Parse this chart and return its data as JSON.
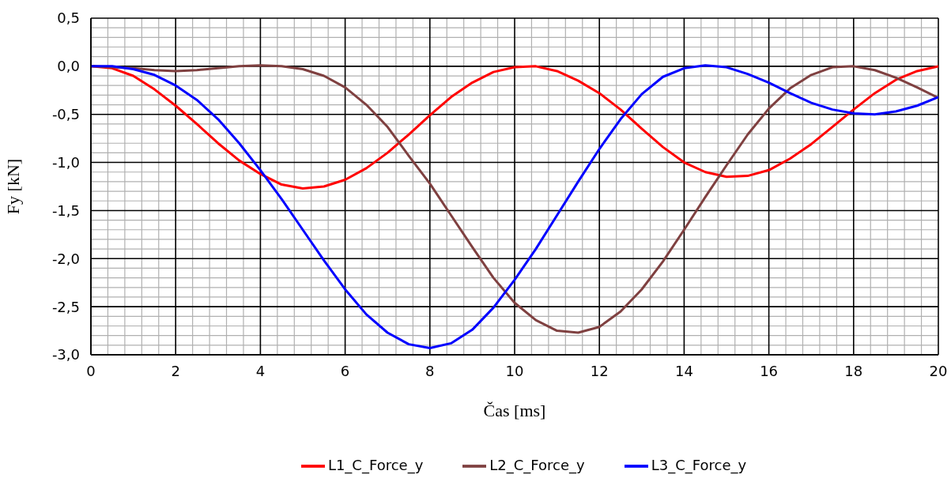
{
  "chart_data": {
    "type": "line",
    "xlabel": "Čas [ms]",
    "ylabel": "Fy [kN]",
    "x": [
      0,
      0.5,
      1,
      1.5,
      2,
      2.5,
      3,
      3.5,
      4,
      4.5,
      5,
      5.5,
      6,
      6.5,
      7,
      7.5,
      8,
      8.5,
      9,
      9.5,
      10,
      10.5,
      11,
      11.5,
      12,
      12.5,
      13,
      13.5,
      14,
      14.5,
      15,
      15.5,
      16,
      16.5,
      17,
      17.5,
      18,
      18.5,
      19,
      19.5,
      20
    ],
    "series": [
      {
        "name": "L1_C_Force_y",
        "color": "#ff0000",
        "values": [
          0,
          -0.02,
          -0.1,
          -0.24,
          -0.41,
          -0.6,
          -0.8,
          -0.98,
          -1.12,
          -1.23,
          -1.27,
          -1.25,
          -1.18,
          -1.06,
          -0.9,
          -0.71,
          -0.51,
          -0.32,
          -0.17,
          -0.06,
          -0.01,
          0,
          -0.05,
          -0.15,
          -0.28,
          -0.45,
          -0.65,
          -0.84,
          -1.0,
          -1.1,
          -1.15,
          -1.14,
          -1.08,
          -0.96,
          -0.81,
          -0.63,
          -0.45,
          -0.28,
          -0.14,
          -0.05,
          0
        ]
      },
      {
        "name": "L2_C_Force_y",
        "color": "#7f4040",
        "values": [
          0,
          -0.01,
          -0.02,
          -0.04,
          -0.05,
          -0.04,
          -0.02,
          0,
          0.01,
          0,
          -0.03,
          -0.1,
          -0.22,
          -0.4,
          -0.63,
          -0.93,
          -1.22,
          -1.55,
          -1.88,
          -2.2,
          -2.46,
          -2.64,
          -2.75,
          -2.77,
          -2.71,
          -2.55,
          -2.32,
          -2.03,
          -1.7,
          -1.36,
          -1.03,
          -0.71,
          -0.44,
          -0.23,
          -0.09,
          -0.01,
          0,
          -0.04,
          -0.12,
          -0.22,
          -0.33
        ]
      },
      {
        "name": "L3_C_Force_y",
        "color": "#0000ff",
        "values": [
          0,
          0,
          -0.03,
          -0.09,
          -0.2,
          -0.35,
          -0.55,
          -0.8,
          -1.08,
          -1.38,
          -1.7,
          -2.02,
          -2.32,
          -2.58,
          -2.77,
          -2.89,
          -2.93,
          -2.88,
          -2.74,
          -2.51,
          -2.22,
          -1.9,
          -1.55,
          -1.2,
          -0.86,
          -0.55,
          -0.29,
          -0.11,
          -0.02,
          0.01,
          -0.01,
          -0.08,
          -0.17,
          -0.28,
          -0.38,
          -0.45,
          -0.49,
          -0.5,
          -0.47,
          -0.41,
          -0.32
        ]
      }
    ],
    "xlim": [
      0,
      20
    ],
    "xticks": [
      0,
      2,
      4,
      6,
      8,
      10,
      12,
      14,
      16,
      18,
      20
    ],
    "ylim": [
      -3,
      0.5
    ],
    "yticks": [
      {
        "value": -3,
        "label": "-3,0"
      },
      {
        "value": -2.5,
        "label": "-2,5"
      },
      {
        "value": -2,
        "label": "-2,0"
      },
      {
        "value": -1.5,
        "label": "-1,5"
      },
      {
        "value": -1,
        "label": "-1,0"
      },
      {
        "value": -0.5,
        "label": "-0,5"
      },
      {
        "value": 0,
        "label": "0,0"
      },
      {
        "value": 0.5,
        "label": "0,5"
      }
    ],
    "grid": true,
    "legend": "bottom",
    "marker": "none",
    "line_style": "solid"
  }
}
